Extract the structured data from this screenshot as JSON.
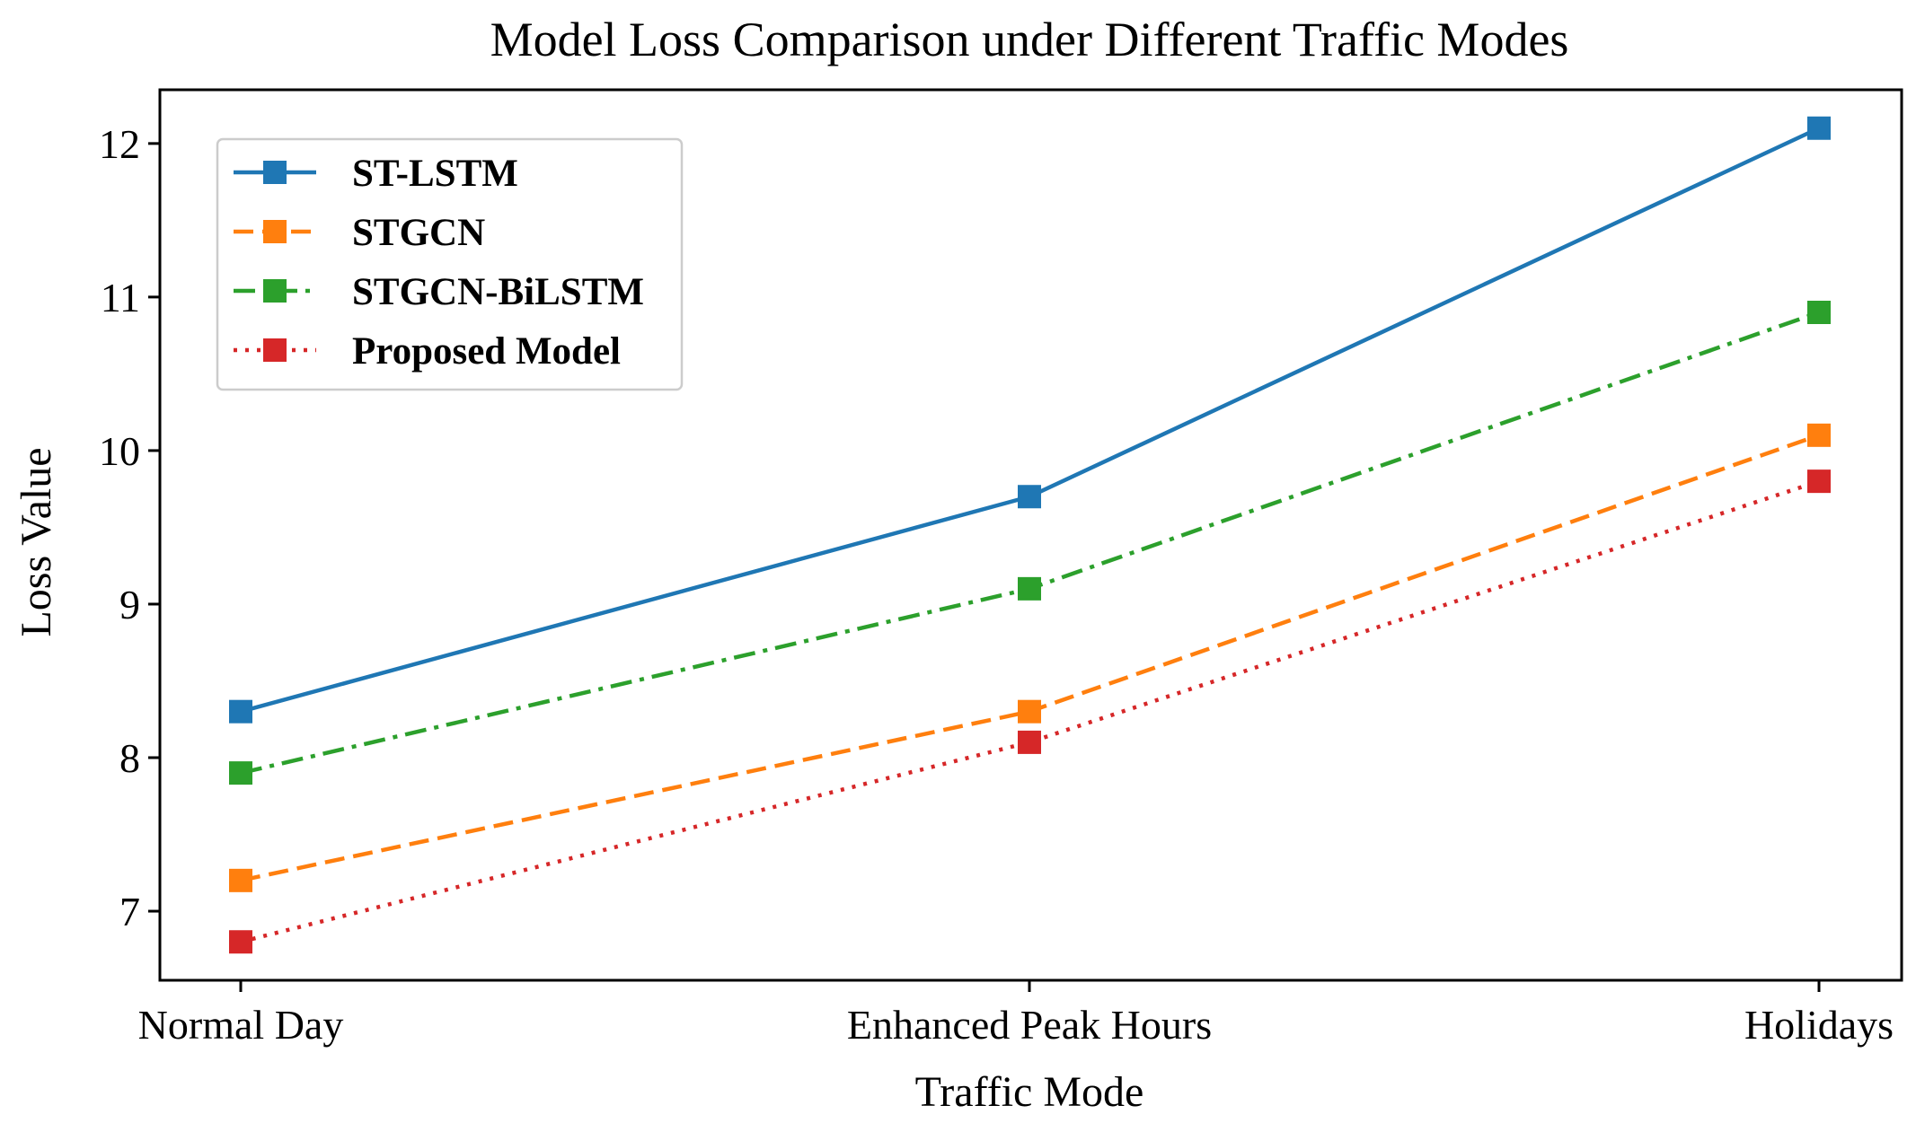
{
  "chart_data": {
    "type": "line",
    "title": "Model Loss Comparison under Different Traffic Modes",
    "xlabel": "Traffic Mode",
    "ylabel": "Loss Value",
    "categories": [
      "Normal Day",
      "Enhanced Peak Hours",
      "Holidays"
    ],
    "ylim": [
      6.55,
      12.35
    ],
    "yticks": [
      7,
      8,
      9,
      10,
      11,
      12
    ],
    "ytick_labels": [
      "7",
      "8",
      "9",
      "10",
      "11",
      "12"
    ],
    "grid": false,
    "legend_position": "top-left",
    "series": [
      {
        "name": "ST-LSTM",
        "values": [
          8.3,
          9.7,
          12.1
        ],
        "color": "#1f77b4",
        "linestyle": "solid",
        "marker": "square"
      },
      {
        "name": "STGCN",
        "values": [
          7.2,
          8.3,
          10.1
        ],
        "color": "#ff7f0e",
        "linestyle": "dashed",
        "marker": "square"
      },
      {
        "name": "STGCN-BiLSTM",
        "values": [
          7.9,
          9.1,
          10.9
        ],
        "color": "#2ca02c",
        "linestyle": "dashdot",
        "marker": "square"
      },
      {
        "name": "Proposed Model",
        "values": [
          6.8,
          8.1,
          9.8
        ],
        "color": "#d62728",
        "linestyle": "dotted",
        "marker": "square"
      }
    ]
  }
}
